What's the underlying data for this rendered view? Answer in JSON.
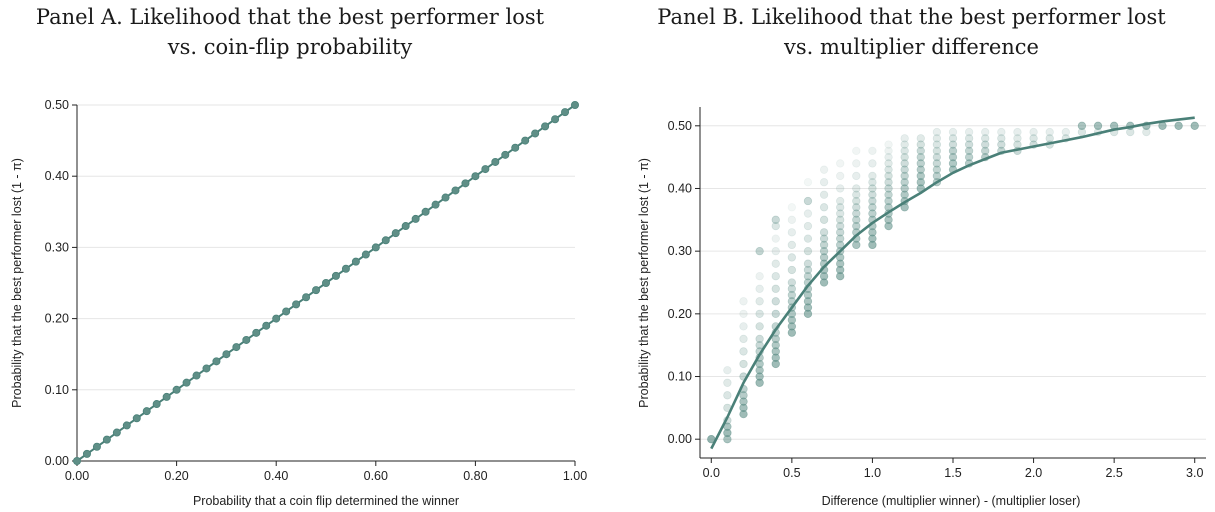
{
  "panels": [
    {
      "title_line1": "Panel A. Likelihood that the best performer lost",
      "title_line2": "vs. coin-flip probability"
    },
    {
      "title_line1": "Panel B. Likelihood that the best performer lost",
      "title_line2": "vs. multiplier difference"
    }
  ],
  "colors": {
    "series": "#4a8078",
    "marker_fill": "#5f8f87",
    "grid": "#e6e6e6",
    "axis": "#222222"
  },
  "chart_data": [
    {
      "type": "line",
      "xlabel": "Probability that a coin flip determined the winner",
      "ylabel": "Probability that the best performer lost (1 - π)",
      "xlim": [
        0,
        1
      ],
      "ylim": [
        0,
        0.5
      ],
      "x_ticks": [
        0,
        0.2,
        0.4,
        0.6,
        0.8,
        1.0
      ],
      "x_tick_labels": [
        "0.00",
        "0.20",
        "0.40",
        "0.60",
        "0.80",
        "1.00"
      ],
      "y_ticks": [
        0,
        0.1,
        0.2,
        0.3,
        0.4,
        0.5
      ],
      "y_tick_labels": [
        "0.00",
        "0.10",
        "0.20",
        "0.30",
        "0.40",
        "0.50"
      ],
      "grid": true,
      "x": [
        0.0,
        0.02,
        0.04,
        0.06,
        0.08,
        0.1,
        0.12,
        0.14,
        0.16,
        0.18,
        0.2,
        0.22,
        0.24,
        0.26,
        0.28,
        0.3,
        0.32,
        0.34,
        0.36,
        0.38,
        0.4,
        0.42,
        0.44,
        0.46,
        0.48,
        0.5,
        0.52,
        0.54,
        0.56,
        0.58,
        0.6,
        0.62,
        0.64,
        0.66,
        0.68,
        0.7,
        0.72,
        0.74,
        0.76,
        0.78,
        0.8,
        0.82,
        0.84,
        0.86,
        0.88,
        0.9,
        0.92,
        0.94,
        0.96,
        0.98,
        1.0
      ],
      "y": [
        0.0,
        0.01,
        0.02,
        0.03,
        0.04,
        0.05,
        0.06,
        0.07,
        0.08,
        0.09,
        0.1,
        0.11,
        0.12,
        0.13,
        0.14,
        0.15,
        0.16,
        0.17,
        0.18,
        0.19,
        0.2,
        0.21,
        0.22,
        0.23,
        0.24,
        0.25,
        0.26,
        0.27,
        0.28,
        0.29,
        0.3,
        0.31,
        0.32,
        0.33,
        0.34,
        0.35,
        0.36,
        0.37,
        0.38,
        0.39,
        0.4,
        0.41,
        0.42,
        0.43,
        0.44,
        0.45,
        0.46,
        0.47,
        0.48,
        0.49,
        0.5
      ]
    },
    {
      "type": "scatter",
      "xlabel": "Difference (multiplier winner) - (multiplier loser)",
      "ylabel": "Probability that the best performer lost (1 - π)",
      "xlim": [
        -0.07,
        3.07
      ],
      "ylim": [
        -0.03,
        0.53
      ],
      "x_ticks": [
        0,
        0.5,
        1.0,
        1.5,
        2.0,
        2.5,
        3.0
      ],
      "x_tick_labels": [
        "0.0",
        "0.5",
        "1.0",
        "1.5",
        "2.0",
        "2.5",
        "3.0"
      ],
      "y_ticks": [
        0,
        0.1,
        0.2,
        0.3,
        0.4,
        0.5
      ],
      "y_tick_labels": [
        "0.00",
        "0.10",
        "0.20",
        "0.30",
        "0.40",
        "0.50"
      ],
      "grid": true,
      "points": [
        [
          0.0,
          0.0,
          0.9
        ],
        [
          0.1,
          0.0,
          0.7
        ],
        [
          0.1,
          0.01,
          0.8
        ],
        [
          0.1,
          0.02,
          0.7
        ],
        [
          0.1,
          0.03,
          0.4
        ],
        [
          0.1,
          0.05,
          0.35
        ],
        [
          0.1,
          0.07,
          0.3
        ],
        [
          0.1,
          0.09,
          0.25
        ],
        [
          0.1,
          0.11,
          0.2
        ],
        [
          0.2,
          0.04,
          0.8
        ],
        [
          0.2,
          0.05,
          0.75
        ],
        [
          0.2,
          0.06,
          0.7
        ],
        [
          0.2,
          0.07,
          0.6
        ],
        [
          0.2,
          0.08,
          0.55
        ],
        [
          0.2,
          0.1,
          0.45
        ],
        [
          0.2,
          0.12,
          0.35
        ],
        [
          0.2,
          0.14,
          0.3
        ],
        [
          0.2,
          0.16,
          0.25
        ],
        [
          0.2,
          0.18,
          0.2
        ],
        [
          0.2,
          0.2,
          0.15
        ],
        [
          0.2,
          0.22,
          0.15
        ],
        [
          0.3,
          0.09,
          0.8
        ],
        [
          0.3,
          0.1,
          0.75
        ],
        [
          0.3,
          0.11,
          0.7
        ],
        [
          0.3,
          0.12,
          0.65
        ],
        [
          0.3,
          0.13,
          0.6
        ],
        [
          0.3,
          0.14,
          0.5
        ],
        [
          0.3,
          0.15,
          0.45
        ],
        [
          0.3,
          0.16,
          0.4
        ],
        [
          0.3,
          0.18,
          0.35
        ],
        [
          0.3,
          0.2,
          0.3
        ],
        [
          0.3,
          0.22,
          0.25
        ],
        [
          0.3,
          0.24,
          0.2
        ],
        [
          0.3,
          0.26,
          0.15
        ],
        [
          0.3,
          0.3,
          0.5
        ],
        [
          0.4,
          0.12,
          0.8
        ],
        [
          0.4,
          0.13,
          0.75
        ],
        [
          0.4,
          0.14,
          0.7
        ],
        [
          0.4,
          0.15,
          0.65
        ],
        [
          0.4,
          0.16,
          0.6
        ],
        [
          0.4,
          0.17,
          0.55
        ],
        [
          0.4,
          0.18,
          0.5
        ],
        [
          0.4,
          0.2,
          0.45
        ],
        [
          0.4,
          0.22,
          0.4
        ],
        [
          0.4,
          0.24,
          0.35
        ],
        [
          0.4,
          0.26,
          0.3
        ],
        [
          0.4,
          0.28,
          0.25
        ],
        [
          0.4,
          0.3,
          0.2
        ],
        [
          0.4,
          0.32,
          0.15
        ],
        [
          0.4,
          0.34,
          0.3
        ],
        [
          0.4,
          0.35,
          0.45
        ],
        [
          0.5,
          0.17,
          0.8
        ],
        [
          0.5,
          0.18,
          0.75
        ],
        [
          0.5,
          0.19,
          0.7
        ],
        [
          0.5,
          0.2,
          0.65
        ],
        [
          0.5,
          0.21,
          0.6
        ],
        [
          0.5,
          0.22,
          0.55
        ],
        [
          0.5,
          0.23,
          0.5
        ],
        [
          0.5,
          0.24,
          0.45
        ],
        [
          0.5,
          0.25,
          0.4
        ],
        [
          0.5,
          0.27,
          0.35
        ],
        [
          0.5,
          0.29,
          0.3
        ],
        [
          0.5,
          0.31,
          0.25
        ],
        [
          0.5,
          0.33,
          0.2
        ],
        [
          0.5,
          0.35,
          0.15
        ],
        [
          0.5,
          0.37,
          0.1
        ],
        [
          0.6,
          0.2,
          0.8
        ],
        [
          0.6,
          0.21,
          0.75
        ],
        [
          0.6,
          0.22,
          0.7
        ],
        [
          0.6,
          0.23,
          0.65
        ],
        [
          0.6,
          0.24,
          0.6
        ],
        [
          0.6,
          0.25,
          0.55
        ],
        [
          0.6,
          0.26,
          0.5
        ],
        [
          0.6,
          0.27,
          0.45
        ],
        [
          0.6,
          0.28,
          0.4
        ],
        [
          0.6,
          0.3,
          0.35
        ],
        [
          0.6,
          0.32,
          0.3
        ],
        [
          0.6,
          0.34,
          0.25
        ],
        [
          0.6,
          0.36,
          0.2
        ],
        [
          0.6,
          0.38,
          0.45
        ],
        [
          0.6,
          0.41,
          0.1
        ],
        [
          0.7,
          0.25,
          0.8
        ],
        [
          0.7,
          0.26,
          0.75
        ],
        [
          0.7,
          0.27,
          0.7
        ],
        [
          0.7,
          0.28,
          0.65
        ],
        [
          0.7,
          0.29,
          0.6
        ],
        [
          0.7,
          0.3,
          0.55
        ],
        [
          0.7,
          0.31,
          0.5
        ],
        [
          0.7,
          0.32,
          0.45
        ],
        [
          0.7,
          0.33,
          0.4
        ],
        [
          0.7,
          0.35,
          0.35
        ],
        [
          0.7,
          0.37,
          0.3
        ],
        [
          0.7,
          0.39,
          0.25
        ],
        [
          0.7,
          0.41,
          0.2
        ],
        [
          0.7,
          0.43,
          0.15
        ],
        [
          0.8,
          0.26,
          0.8
        ],
        [
          0.8,
          0.27,
          0.75
        ],
        [
          0.8,
          0.28,
          0.7
        ],
        [
          0.8,
          0.29,
          0.65
        ],
        [
          0.8,
          0.3,
          0.6
        ],
        [
          0.8,
          0.31,
          0.55
        ],
        [
          0.8,
          0.32,
          0.5
        ],
        [
          0.8,
          0.33,
          0.45
        ],
        [
          0.8,
          0.34,
          0.4
        ],
        [
          0.8,
          0.35,
          0.35
        ],
        [
          0.8,
          0.36,
          0.3
        ],
        [
          0.8,
          0.37,
          0.3
        ],
        [
          0.8,
          0.38,
          0.25
        ],
        [
          0.8,
          0.4,
          0.2
        ],
        [
          0.8,
          0.42,
          0.15
        ],
        [
          0.8,
          0.44,
          0.12
        ],
        [
          0.9,
          0.31,
          0.7
        ],
        [
          0.9,
          0.32,
          0.65
        ],
        [
          0.9,
          0.33,
          0.6
        ],
        [
          0.9,
          0.34,
          0.55
        ],
        [
          0.9,
          0.35,
          0.5
        ],
        [
          0.9,
          0.36,
          0.45
        ],
        [
          0.9,
          0.37,
          0.4
        ],
        [
          0.9,
          0.38,
          0.35
        ],
        [
          0.9,
          0.39,
          0.3
        ],
        [
          0.9,
          0.4,
          0.25
        ],
        [
          0.9,
          0.42,
          0.2
        ],
        [
          0.9,
          0.44,
          0.15
        ],
        [
          0.9,
          0.46,
          0.12
        ],
        [
          1.0,
          0.31,
          0.8
        ],
        [
          1.0,
          0.32,
          0.75
        ],
        [
          1.0,
          0.33,
          0.7
        ],
        [
          1.0,
          0.34,
          0.65
        ],
        [
          1.0,
          0.35,
          0.6
        ],
        [
          1.0,
          0.36,
          0.55
        ],
        [
          1.0,
          0.37,
          0.5
        ],
        [
          1.0,
          0.38,
          0.45
        ],
        [
          1.0,
          0.39,
          0.4
        ],
        [
          1.0,
          0.4,
          0.35
        ],
        [
          1.0,
          0.41,
          0.3
        ],
        [
          1.0,
          0.42,
          0.25
        ],
        [
          1.0,
          0.44,
          0.2
        ],
        [
          1.0,
          0.46,
          0.15
        ],
        [
          1.1,
          0.34,
          0.75
        ],
        [
          1.1,
          0.35,
          0.7
        ],
        [
          1.1,
          0.36,
          0.65
        ],
        [
          1.1,
          0.37,
          0.6
        ],
        [
          1.1,
          0.38,
          0.55
        ],
        [
          1.1,
          0.39,
          0.5
        ],
        [
          1.1,
          0.4,
          0.45
        ],
        [
          1.1,
          0.41,
          0.4
        ],
        [
          1.1,
          0.42,
          0.35
        ],
        [
          1.1,
          0.43,
          0.3
        ],
        [
          1.1,
          0.44,
          0.25
        ],
        [
          1.1,
          0.45,
          0.2
        ],
        [
          1.1,
          0.46,
          0.15
        ],
        [
          1.1,
          0.47,
          0.12
        ],
        [
          1.2,
          0.37,
          0.75
        ],
        [
          1.2,
          0.38,
          0.7
        ],
        [
          1.2,
          0.39,
          0.65
        ],
        [
          1.2,
          0.4,
          0.6
        ],
        [
          1.2,
          0.41,
          0.55
        ],
        [
          1.2,
          0.42,
          0.5
        ],
        [
          1.2,
          0.43,
          0.45
        ],
        [
          1.2,
          0.44,
          0.4
        ],
        [
          1.2,
          0.45,
          0.35
        ],
        [
          1.2,
          0.46,
          0.3
        ],
        [
          1.2,
          0.47,
          0.25
        ],
        [
          1.2,
          0.48,
          0.2
        ],
        [
          1.3,
          0.4,
          0.75
        ],
        [
          1.3,
          0.41,
          0.7
        ],
        [
          1.3,
          0.42,
          0.65
        ],
        [
          1.3,
          0.43,
          0.6
        ],
        [
          1.3,
          0.44,
          0.55
        ],
        [
          1.3,
          0.45,
          0.5
        ],
        [
          1.3,
          0.46,
          0.45
        ],
        [
          1.3,
          0.47,
          0.35
        ],
        [
          1.3,
          0.48,
          0.25
        ],
        [
          1.4,
          0.41,
          0.6
        ],
        [
          1.4,
          0.42,
          0.55
        ],
        [
          1.4,
          0.43,
          0.5
        ],
        [
          1.4,
          0.44,
          0.45
        ],
        [
          1.4,
          0.45,
          0.4
        ],
        [
          1.4,
          0.46,
          0.35
        ],
        [
          1.4,
          0.47,
          0.3
        ],
        [
          1.4,
          0.48,
          0.25
        ],
        [
          1.4,
          0.49,
          0.2
        ],
        [
          1.5,
          0.43,
          0.7
        ],
        [
          1.5,
          0.44,
          0.65
        ],
        [
          1.5,
          0.45,
          0.6
        ],
        [
          1.5,
          0.46,
          0.55
        ],
        [
          1.5,
          0.47,
          0.4
        ],
        [
          1.5,
          0.48,
          0.3
        ],
        [
          1.5,
          0.49,
          0.2
        ],
        [
          1.6,
          0.44,
          0.6
        ],
        [
          1.6,
          0.45,
          0.55
        ],
        [
          1.6,
          0.46,
          0.5
        ],
        [
          1.6,
          0.47,
          0.4
        ],
        [
          1.6,
          0.48,
          0.3
        ],
        [
          1.6,
          0.49,
          0.2
        ],
        [
          1.7,
          0.45,
          0.6
        ],
        [
          1.7,
          0.46,
          0.5
        ],
        [
          1.7,
          0.47,
          0.4
        ],
        [
          1.7,
          0.48,
          0.3
        ],
        [
          1.7,
          0.49,
          0.2
        ],
        [
          1.8,
          0.46,
          0.5
        ],
        [
          1.8,
          0.47,
          0.4
        ],
        [
          1.8,
          0.48,
          0.3
        ],
        [
          1.8,
          0.49,
          0.2
        ],
        [
          1.9,
          0.46,
          0.45
        ],
        [
          1.9,
          0.47,
          0.35
        ],
        [
          1.9,
          0.48,
          0.25
        ],
        [
          1.9,
          0.49,
          0.2
        ],
        [
          2.0,
          0.47,
          0.4
        ],
        [
          2.0,
          0.48,
          0.3
        ],
        [
          2.0,
          0.49,
          0.2
        ],
        [
          2.1,
          0.47,
          0.35
        ],
        [
          2.1,
          0.48,
          0.3
        ],
        [
          2.1,
          0.49,
          0.2
        ],
        [
          2.2,
          0.48,
          0.3
        ],
        [
          2.2,
          0.49,
          0.2
        ],
        [
          2.3,
          0.49,
          0.3
        ],
        [
          2.3,
          0.5,
          0.7
        ],
        [
          2.4,
          0.49,
          0.25
        ],
        [
          2.4,
          0.5,
          0.75
        ],
        [
          2.5,
          0.49,
          0.3
        ],
        [
          2.5,
          0.5,
          0.75
        ],
        [
          2.6,
          0.49,
          0.3
        ],
        [
          2.6,
          0.5,
          0.75
        ],
        [
          2.7,
          0.49,
          0.25
        ],
        [
          2.7,
          0.5,
          0.75
        ],
        [
          2.8,
          0.5,
          0.8
        ],
        [
          2.9,
          0.5,
          0.8
        ],
        [
          3.0,
          0.5,
          0.8
        ]
      ],
      "fit_line": {
        "x": [
          0.0,
          0.1,
          0.2,
          0.3,
          0.4,
          0.5,
          0.6,
          0.7,
          0.8,
          0.9,
          1.0,
          1.1,
          1.2,
          1.3,
          1.4,
          1.5,
          1.6,
          1.7,
          1.8,
          1.9,
          2.0,
          2.1,
          2.2,
          2.3,
          2.4,
          2.5,
          2.6,
          2.7,
          2.8,
          2.9,
          3.0
        ],
        "y": [
          -0.015,
          0.035,
          0.09,
          0.135,
          0.175,
          0.21,
          0.245,
          0.275,
          0.3,
          0.325,
          0.345,
          0.362,
          0.378,
          0.393,
          0.41,
          0.425,
          0.437,
          0.447,
          0.457,
          0.462,
          0.467,
          0.472,
          0.477,
          0.482,
          0.488,
          0.494,
          0.498,
          0.503,
          0.507,
          0.51,
          0.513
        ]
      }
    }
  ]
}
